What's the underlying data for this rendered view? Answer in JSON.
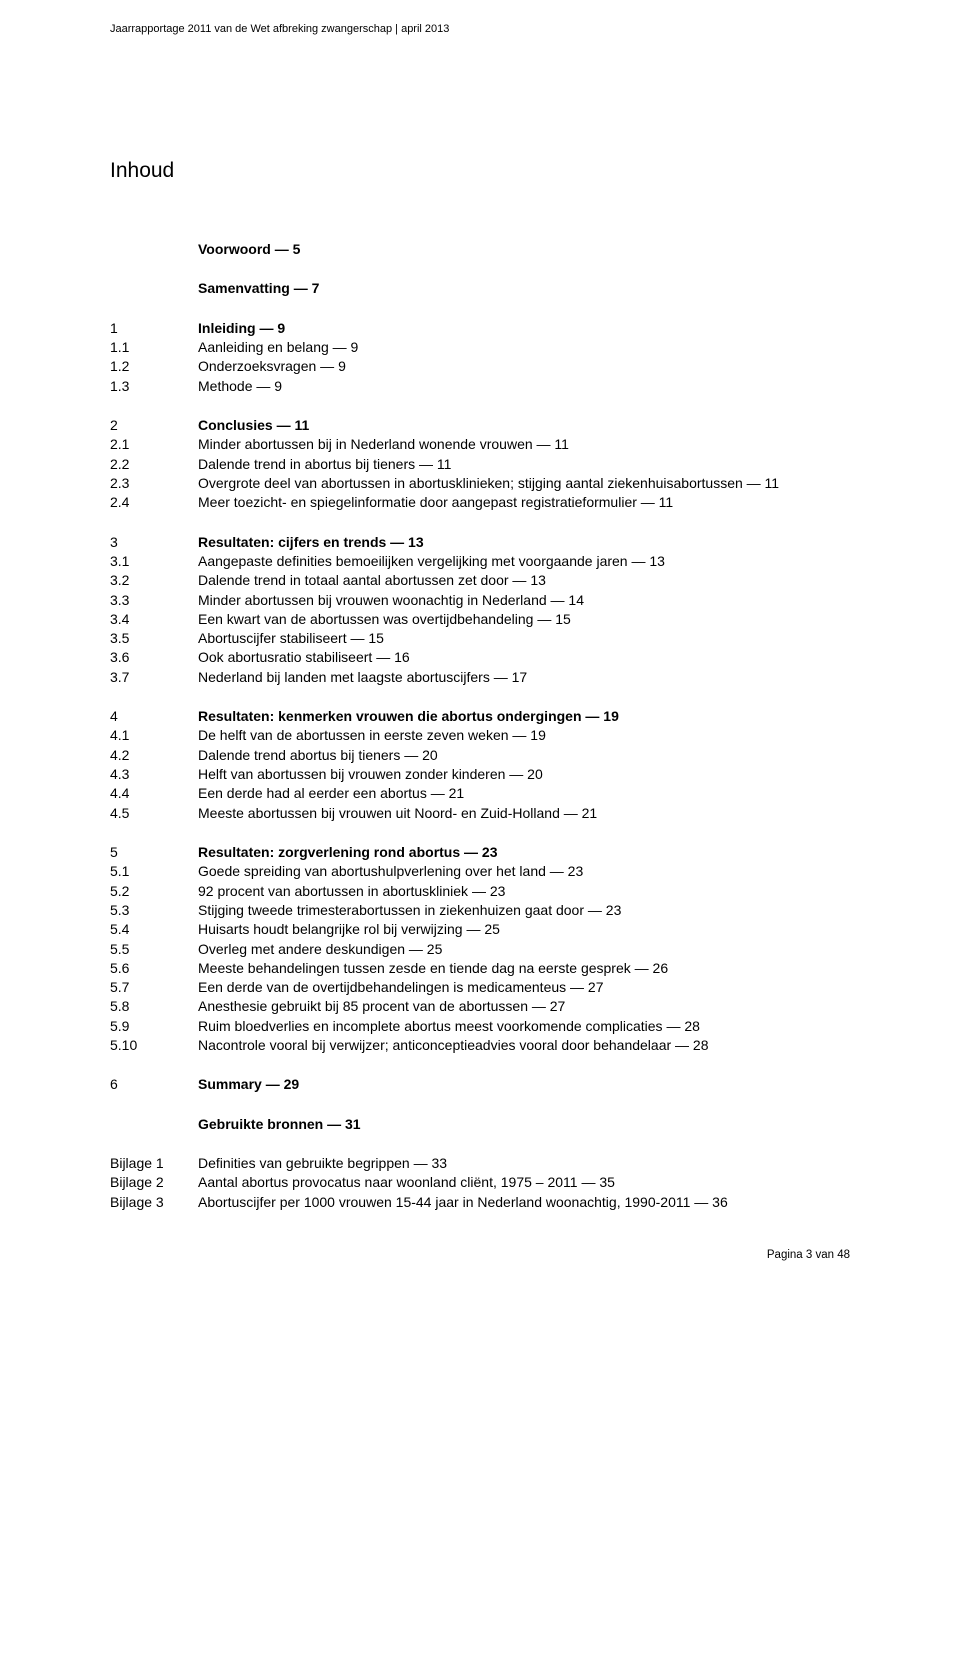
{
  "header": "Jaarrapportage 2011 van de Wet afbreking zwangerschap | april 2013",
  "title": "Inhoud",
  "footer": "Pagina 3 van 48",
  "toc": [
    [
      {
        "num": "",
        "text": "Voorwoord — 5",
        "bold": true
      }
    ],
    [
      {
        "num": "",
        "text": "Samenvatting — 7",
        "bold": true
      }
    ],
    [
      {
        "num": "1",
        "text": "Inleiding — 9",
        "bold": true
      },
      {
        "num": "1.1",
        "text": "Aanleiding en belang — 9"
      },
      {
        "num": "1.2",
        "text": "Onderzoeksvragen — 9"
      },
      {
        "num": "1.3",
        "text": "Methode — 9"
      }
    ],
    [
      {
        "num": "2",
        "text": "Conclusies — 11",
        "bold": true
      },
      {
        "num": "2.1",
        "text": "Minder abortussen bij in Nederland wonende vrouwen — 11"
      },
      {
        "num": "2.2",
        "text": "Dalende trend in abortus bij tieners — 11"
      },
      {
        "num": "2.3",
        "text": "Overgrote deel van abortussen in abortusklinieken; stijging aantal ziekenhuisabortussen — 11"
      },
      {
        "num": "2.4",
        "text": "Meer toezicht- en spiegelinformatie door aangepast registratieformulier — 11"
      }
    ],
    [
      {
        "num": "3",
        "text": "Resultaten: cijfers en trends — 13",
        "bold": true
      },
      {
        "num": "3.1",
        "text": "Aangepaste definities bemoeilijken vergelijking met voorgaande jaren — 13"
      },
      {
        "num": "3.2",
        "text": "Dalende trend in totaal aantal abortussen zet door — 13"
      },
      {
        "num": "3.3",
        "text": "Minder abortussen bij vrouwen woonachtig in Nederland — 14"
      },
      {
        "num": "3.4",
        "text": "Een kwart van de abortussen was overtijdbehandeling — 15"
      },
      {
        "num": "3.5",
        "text": "Abortuscijfer stabiliseert — 15"
      },
      {
        "num": "3.6",
        "text": "Ook abortusratio stabiliseert — 16"
      },
      {
        "num": "3.7",
        "text": "Nederland bij landen met laagste abortuscijfers — 17"
      }
    ],
    [
      {
        "num": "4",
        "text": "Resultaten: kenmerken vrouwen die abortus ondergingen — 19",
        "bold": true
      },
      {
        "num": "4.1",
        "text": "De helft van de abortussen in eerste zeven weken — 19"
      },
      {
        "num": "4.2",
        "text": "Dalende trend abortus bij tieners — 20"
      },
      {
        "num": "4.3",
        "text": "Helft van abortussen bij vrouwen zonder kinderen — 20"
      },
      {
        "num": "4.4",
        "text": "Een derde had al eerder een abortus — 21"
      },
      {
        "num": "4.5",
        "text": "Meeste abortussen bij vrouwen uit Noord- en Zuid-Holland — 21"
      }
    ],
    [
      {
        "num": "5",
        "text": "Resultaten: zorgverlening rond abortus — 23",
        "bold": true
      },
      {
        "num": "5.1",
        "text": "Goede spreiding van abortushulpverlening over het land — 23"
      },
      {
        "num": "5.2",
        "text": "92 procent van abortussen in abortuskliniek — 23"
      },
      {
        "num": "5.3",
        "text": "Stijging tweede trimesterabortussen in ziekenhuizen gaat door — 23"
      },
      {
        "num": "5.4",
        "text": "Huisarts houdt belangrijke rol bij verwijzing — 25"
      },
      {
        "num": "5.5",
        "text": "Overleg met andere deskundigen — 25"
      },
      {
        "num": "5.6",
        "text": "Meeste behandelingen tussen zesde en tiende dag na eerste gesprek — 26"
      },
      {
        "num": "5.7",
        "text": "Een derde van de overtijdbehandelingen is medicamenteus — 27"
      },
      {
        "num": "5.8",
        "text": "Anesthesie gebruikt bij 85 procent van de abortussen — 27"
      },
      {
        "num": "5.9",
        "text": "Ruim bloedverlies en incomplete abortus meest voorkomende complicaties — 28"
      },
      {
        "num": "5.10",
        "text": "Nacontrole vooral bij verwijzer; anticonceptieadvies vooral door behandelaar — 28"
      }
    ],
    [
      {
        "num": "6",
        "text": "Summary — 29",
        "bold": true
      }
    ],
    [
      {
        "num": "",
        "text": "Gebruikte bronnen — 31",
        "bold": true
      }
    ],
    [
      {
        "num": "Bijlage 1",
        "text": "Definities van gebruikte begrippen — 33"
      },
      {
        "num": "Bijlage 2",
        "text": "Aantal abortus provocatus naar woonland cliënt, 1975 – 2011 — 35"
      },
      {
        "num": "Bijlage 3",
        "text": "Abortuscijfer per 1000 vrouwen 15-44 jaar in Nederland woonachtig, 1990-2011 — 36"
      }
    ]
  ]
}
